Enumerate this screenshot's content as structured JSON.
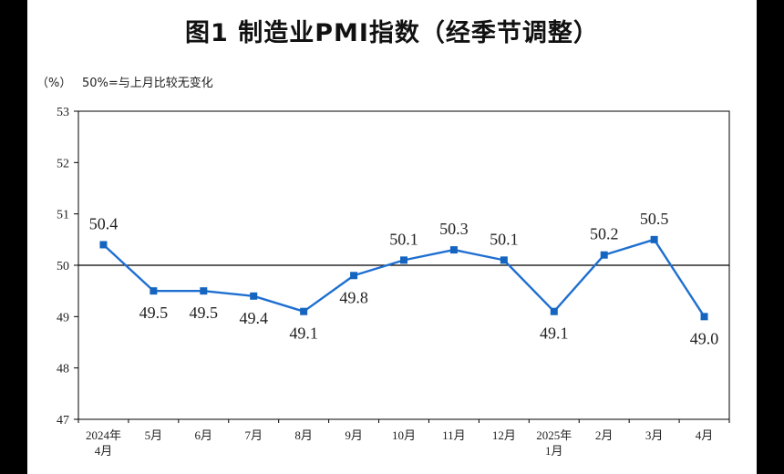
{
  "title": "图1  制造业PMI指数（经季节调整）",
  "unit_label": "（%）",
  "note": "50%=与上月比较无变化",
  "colors": {
    "line": "#1f6fd1",
    "marker": "#1565c0",
    "ref": "#000000"
  },
  "chart_data": {
    "type": "line",
    "categories": [
      "2024年\n4月",
      "5月",
      "6月",
      "7月",
      "8月",
      "9月",
      "10月",
      "11月",
      "12月",
      "2025年\n1月",
      "2月",
      "3月",
      "4月"
    ],
    "series": [
      {
        "values": [
          50.4,
          49.5,
          49.5,
          49.4,
          49.1,
          49.8,
          50.1,
          50.3,
          50.1,
          49.1,
          50.2,
          50.5,
          49.0
        ]
      }
    ],
    "data_labels": [
      "50.4",
      "49.5",
      "49.5",
      "49.4",
      "49.1",
      "49.8",
      "50.1",
      "50.3",
      "50.1",
      "49.1",
      "50.2",
      "50.5",
      "49.0"
    ],
    "label_position": [
      "above",
      "below",
      "below",
      "below",
      "below",
      "below",
      "above",
      "above",
      "above",
      "below",
      "above",
      "above",
      "below"
    ],
    "ylim": [
      47,
      53
    ],
    "yticks": [
      "53",
      "52",
      "51",
      "50",
      "49",
      "48",
      "47"
    ],
    "reference_line": 50,
    "grid": false,
    "legend": "none"
  }
}
